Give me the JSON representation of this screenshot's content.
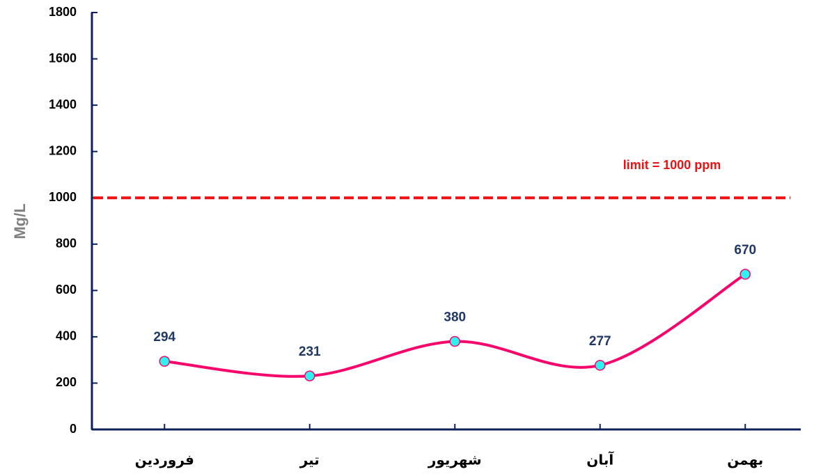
{
  "chart_data": {
    "type": "line",
    "y_label": "Mg/L",
    "categories": [
      "فروردین",
      "تیر",
      "شهریور",
      "آبان",
      "بهمن"
    ],
    "series": [
      {
        "name": "Mg/L",
        "color": "#f5056b",
        "marker_color": "#33f0f0",
        "values": [
          294,
          231,
          380,
          277,
          670
        ]
      }
    ],
    "ylim": [
      0,
      1800
    ],
    "yticks": [
      0,
      200,
      400,
      600,
      800,
      1000,
      1200,
      1400,
      1600,
      1800
    ],
    "limit": {
      "value": 1000,
      "label": "limit = 1000 ppm",
      "color": "#ee1111"
    },
    "axis_color": "#0d1f5c",
    "label_color": "#1f3864"
  }
}
